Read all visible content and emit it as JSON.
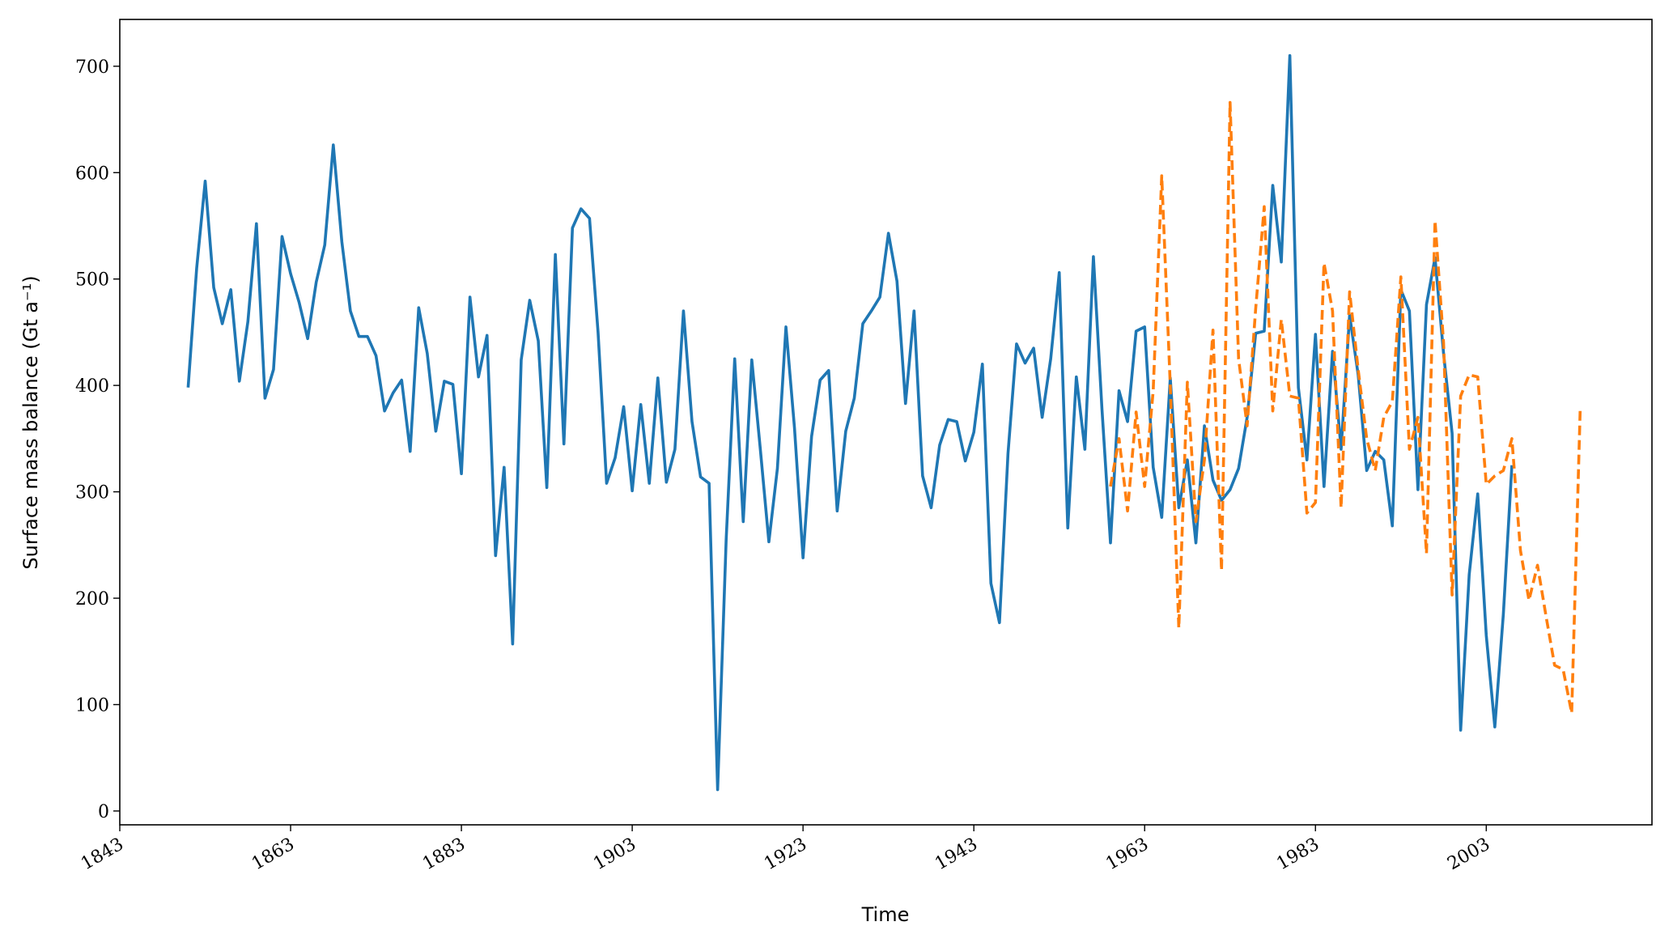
{
  "chart_data": {
    "type": "line",
    "xlabel": "Time",
    "ylabel": "Surface mass balance (Gt a⁻¹)",
    "xlim": [
      1843,
      2022.4
    ],
    "ylim": [
      -13,
      744
    ],
    "xticks": [
      1843,
      1863,
      1883,
      1903,
      1923,
      1943,
      1963,
      1983,
      2003
    ],
    "yticks": [
      0,
      100,
      200,
      300,
      400,
      500,
      600,
      700
    ],
    "series": [
      {
        "color": "#1f77b4",
        "dash": false,
        "x": [
          1851,
          1852,
          1853,
          1854,
          1855,
          1856,
          1857,
          1858,
          1859,
          1860,
          1861,
          1862,
          1863,
          1864,
          1865,
          1866,
          1867,
          1868,
          1869,
          1870,
          1871,
          1872,
          1873,
          1874,
          1875,
          1876,
          1877,
          1878,
          1879,
          1880,
          1881,
          1882,
          1883,
          1884,
          1885,
          1886,
          1887,
          1888,
          1889,
          1890,
          1891,
          1892,
          1893,
          1894,
          1895,
          1896,
          1897,
          1898,
          1899,
          1900,
          1901,
          1902,
          1903,
          1904,
          1905,
          1906,
          1907,
          1908,
          1909,
          1910,
          1911,
          1912,
          1913,
          1914,
          1915,
          1916,
          1917,
          1918,
          1919,
          1920,
          1921,
          1922,
          1923,
          1924,
          1925,
          1926,
          1927,
          1928,
          1929,
          1930,
          1931,
          1932,
          1933,
          1934,
          1935,
          1936,
          1937,
          1938,
          1939,
          1940,
          1941,
          1942,
          1943,
          1944,
          1945,
          1946,
          1947,
          1948,
          1949,
          1950,
          1951,
          1952,
          1953,
          1954,
          1955,
          1956,
          1957,
          1958,
          1959,
          1960,
          1961,
          1962,
          1963,
          1964,
          1965,
          1966,
          1967,
          1968,
          1969,
          1970,
          1971,
          1972,
          1973,
          1974,
          1975,
          1976,
          1977,
          1978,
          1979,
          1980,
          1981,
          1982,
          1983,
          1984,
          1985,
          1986,
          1987,
          1988,
          1989,
          1990,
          1991,
          1992,
          1993,
          1994,
          1995,
          1996,
          1997,
          1998,
          1999,
          2000,
          2001,
          2002,
          2003,
          2004,
          2005,
          2006
        ],
        "values": [
          398,
          510,
          592,
          492,
          458,
          490,
          404,
          460,
          552,
          388,
          415,
          540,
          505,
          478,
          444,
          497,
          532,
          626,
          535,
          470,
          446,
          446,
          428,
          376,
          393,
          405,
          338,
          473,
          430,
          357,
          404,
          401,
          317,
          483,
          408,
          447,
          240,
          323,
          157,
          424,
          480,
          442,
          304,
          523,
          345,
          548,
          566,
          557,
          450,
          308,
          332,
          380,
          301,
          382,
          308,
          407,
          309,
          340,
          470,
          366,
          314,
          308,
          20,
          255,
          425,
          272,
          424,
          340,
          253,
          322,
          455,
          360,
          238,
          352,
          405,
          414,
          282,
          357,
          388,
          458,
          470,
          483,
          543,
          498,
          383,
          470,
          315,
          285,
          344,
          368,
          366,
          329,
          356,
          420,
          214,
          177,
          336,
          439,
          421,
          435,
          370,
          425,
          506,
          266,
          408,
          340,
          521,
          378,
          252,
          395,
          366,
          451,
          455,
          323,
          276,
          407,
          285,
          330,
          252,
          362,
          311,
          292,
          302,
          322,
          370,
          449,
          451,
          588,
          516,
          710,
          398,
          330,
          448,
          305,
          432,
          340,
          466,
          410,
          320,
          338,
          330,
          268,
          490,
          470,
          302,
          476,
          520,
          430,
          355,
          76,
          222,
          298,
          165,
          79,
          185,
          325
        ]
      },
      {
        "color": "#ff7f0e",
        "dash": true,
        "x": [
          1959,
          1960,
          1961,
          1962,
          1963,
          1964,
          1965,
          1966,
          1967,
          1968,
          1969,
          1970,
          1971,
          1972,
          1973,
          1974,
          1975,
          1976,
          1977,
          1978,
          1979,
          1980,
          1981,
          1982,
          1983,
          1984,
          1985,
          1986,
          1987,
          1988,
          1989,
          1990,
          1991,
          1992,
          1993,
          1994,
          1995,
          1996,
          1997,
          1998,
          1999,
          2000,
          2001,
          2002,
          2003,
          2004,
          2005,
          2006,
          2007,
          2008,
          2009,
          2010,
          2011,
          2012,
          2013,
          2014
        ],
        "values": [
          305,
          350,
          282,
          375,
          305,
          395,
          597,
          400,
          172,
          403,
          272,
          330,
          452,
          226,
          666,
          425,
          362,
          472,
          568,
          376,
          462,
          390,
          388,
          280,
          290,
          515,
          470,
          285,
          488,
          415,
          350,
          320,
          370,
          385,
          502,
          340,
          370,
          242,
          555,
          440,
          203,
          390,
          410,
          408,
          307,
          315,
          320,
          350,
          245,
          198,
          231,
          183,
          137,
          133,
          92,
          378
        ]
      }
    ]
  }
}
